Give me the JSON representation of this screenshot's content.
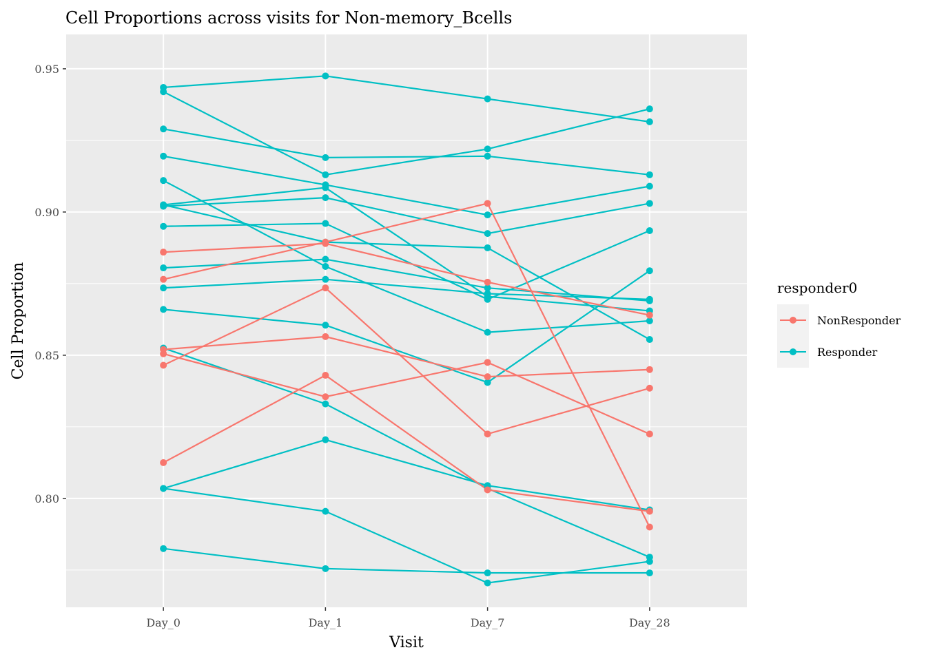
{
  "chart_data": {
    "type": "line",
    "title": "Cell Proportions across visits for Non-memory_Bcells",
    "xlabel": "Visit",
    "ylabel": "Cell Proportion",
    "categories": [
      "Day_0",
      "Day_1",
      "Day_7",
      "Day_28"
    ],
    "ylim": [
      0.762,
      0.962
    ],
    "yticks": [
      0.8,
      0.85,
      0.9,
      0.95
    ],
    "ytick_labels": [
      "0.80",
      "0.85",
      "0.90",
      "0.95"
    ],
    "grid": true,
    "legend": {
      "title": "responder0",
      "position": "right",
      "entries": [
        {
          "label": "NonResponder",
          "color": "#F8766D"
        },
        {
          "label": "Responder",
          "color": "#00BFC4"
        }
      ]
    },
    "colors": {
      "NonResponder": "#F8766D",
      "Responder": "#00BFC4",
      "panel": "#EBEBEB",
      "grid": "#FFFFFF"
    },
    "series": [
      {
        "group": "Responder",
        "values": [
          0.9435,
          0.9475,
          0.9395,
          0.9315
        ]
      },
      {
        "group": "Responder",
        "values": [
          0.942,
          0.913,
          0.922,
          0.936
        ]
      },
      {
        "group": "Responder",
        "values": [
          0.929,
          0.919,
          0.9195,
          0.913
        ]
      },
      {
        "group": "Responder",
        "values": [
          0.9195,
          0.9095,
          0.899,
          0.909
        ]
      },
      {
        "group": "Responder",
        "values": [
          0.911,
          0.881,
          0.858,
          0.862
        ]
      },
      {
        "group": "Responder",
        "values": [
          0.9025,
          0.9085,
          0.8705,
          0.8655
        ]
      },
      {
        "group": "Responder",
        "values": [
          0.902,
          0.905,
          0.8925,
          0.903
        ]
      },
      {
        "group": "Responder",
        "values": [
          0.895,
          0.896,
          0.8695,
          0.8935
        ]
      },
      {
        "group": "Responder",
        "values": [
          0.8805,
          0.8835,
          0.8735,
          0.869
        ]
      },
      {
        "group": "Responder",
        "values": [
          0.8735,
          0.8765,
          0.8715,
          0.8695
        ]
      },
      {
        "group": "Responder",
        "values": [
          0.866,
          0.8605,
          0.8405,
          0.8795
        ]
      },
      {
        "group": "Responder",
        "values": [
          0.8525,
          0.833,
          0.8035,
          0.7795
        ]
      },
      {
        "group": "Responder",
        "values": [
          0.8035,
          0.8205,
          0.8045,
          0.796
        ]
      },
      {
        "group": "Responder",
        "values": [
          0.8035,
          0.7955,
          0.7705,
          0.778
        ]
      },
      {
        "group": "Responder",
        "values": [
          0.7825,
          0.7755,
          0.774,
          0.774
        ]
      },
      {
        "group": "Responder",
        "values": [
          0.9025,
          0.8895,
          0.8875,
          0.8555
        ]
      },
      {
        "group": "NonResponder",
        "values": [
          0.886,
          0.889,
          0.8755,
          0.864
        ]
      },
      {
        "group": "NonResponder",
        "values": [
          0.8765,
          0.8895,
          0.903,
          0.79
        ]
      },
      {
        "group": "NonResponder",
        "values": [
          0.852,
          0.8565,
          0.8425,
          0.845
        ]
      },
      {
        "group": "NonResponder",
        "values": [
          0.8505,
          0.8355,
          0.8475,
          0.8225
        ]
      },
      {
        "group": "NonResponder",
        "values": [
          0.8465,
          0.8735,
          0.8225,
          0.8385
        ]
      },
      {
        "group": "NonResponder",
        "values": [
          0.8125,
          0.843,
          0.803,
          0.7955
        ]
      }
    ]
  }
}
